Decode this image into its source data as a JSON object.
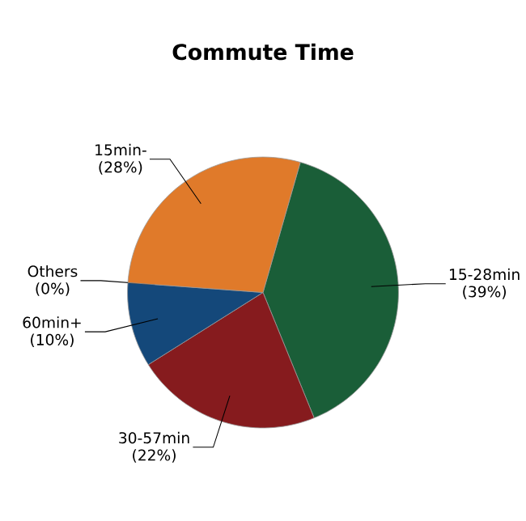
{
  "chart_data": {
    "type": "pie",
    "title": "Commute Time",
    "categories": [
      "15-28min",
      "30-57min",
      "60min+",
      "Others",
      "15min-"
    ],
    "values": [
      39,
      22,
      10,
      0,
      28
    ],
    "value_labels": [
      "(39%)",
      "(22%)",
      "(10%)",
      "(0%)",
      "(28%)"
    ],
    "colors": [
      "#1a5e38",
      "#861b1e",
      "#14487a",
      "#9a9a9a",
      "#e07a2a"
    ]
  }
}
